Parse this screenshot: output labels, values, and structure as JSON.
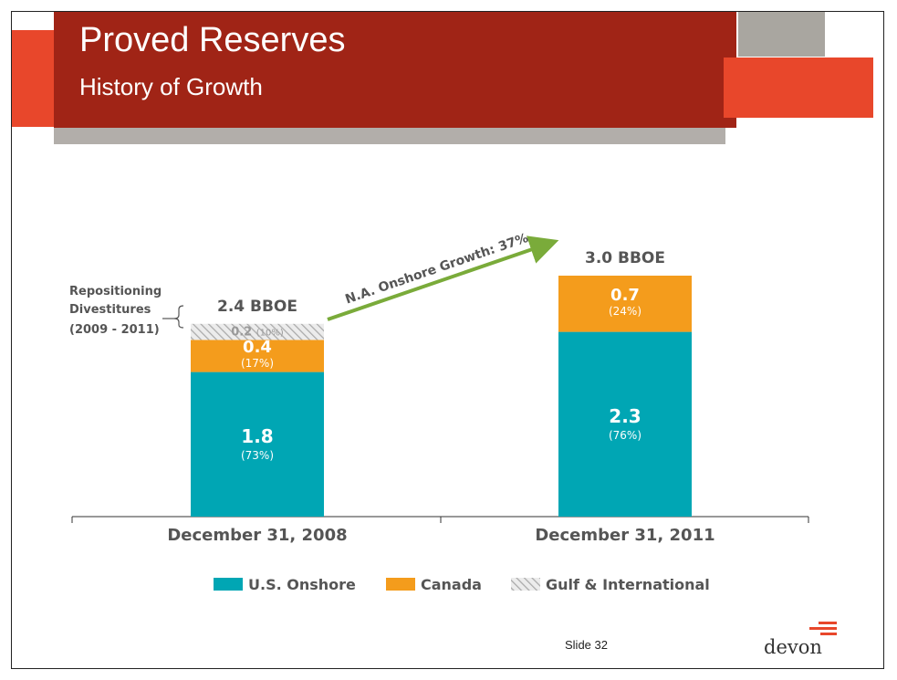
{
  "header": {
    "title": "Proved Reserves",
    "subtitle": "History of Growth"
  },
  "chart_data": {
    "type": "bar",
    "stacked": true,
    "categories": [
      "December 31, 2008",
      "December 31, 2011"
    ],
    "series": [
      {
        "name": "U.S. Onshore",
        "values": [
          1.8,
          2.3
        ],
        "labels": [
          "1.8",
          "2.3"
        ],
        "pct_labels": [
          "(73%)",
          "(76%)"
        ],
        "color": "#00a6b4",
        "pattern": "solid"
      },
      {
        "name": "Canada",
        "values": [
          0.4,
          0.7
        ],
        "labels": [
          "0.4",
          "0.7"
        ],
        "pct_labels": [
          "(17%)",
          "(24%)"
        ],
        "color": "#f49c1c",
        "pattern": "solid"
      },
      {
        "name": "Gulf & International",
        "values": [
          0.2,
          0
        ],
        "labels": [
          "0.2",
          ""
        ],
        "pct_labels": [
          "(10%)",
          ""
        ],
        "color": "#c8c8c8",
        "pattern": "hatched"
      }
    ],
    "totals": [
      "2.4 BBOE",
      "3.0 BBOE"
    ],
    "legend_position": "bottom",
    "annotations": {
      "growth_arrow": "N.A. Onshore Growth: 37%",
      "bracket_label": [
        "Repositioning",
        "Divestitures",
        "(2009 - 2011)"
      ]
    },
    "colors": {
      "arrow": "#7aab3a",
      "label": "#555555"
    }
  },
  "footer": {
    "slide_number": "Slide 32",
    "logo_text": "devon"
  }
}
